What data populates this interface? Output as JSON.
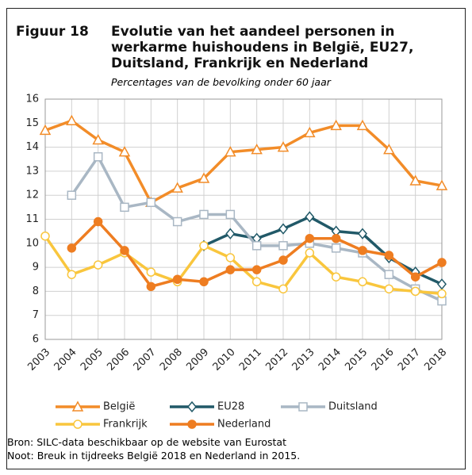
{
  "header": {
    "figure": "Figuur 18",
    "title": "Evolutie van het aandeel personen in werkarme huishoudens in België, EU27, Duitsland, Frankrijk en Nederland",
    "subtitle": "Percentages van de bevolking onder 60 jaar"
  },
  "chart_data": {
    "type": "line",
    "categories": [
      "2003",
      "2004",
      "2005",
      "2006",
      "2007",
      "2008",
      "2009",
      "2010",
      "2011",
      "2012",
      "2013",
      "2014",
      "2015",
      "2016",
      "2017",
      "2018"
    ],
    "ylim": [
      6,
      16
    ],
    "yticks": [
      6,
      7,
      8,
      9,
      10,
      11,
      12,
      13,
      14,
      15,
      16
    ],
    "grid": true,
    "legend": "bottom",
    "series": [
      {
        "name": "België",
        "color": "#f28c28",
        "marker": "triangle",
        "values": [
          14.7,
          15.1,
          14.3,
          13.8,
          11.7,
          12.3,
          12.7,
          13.8,
          13.9,
          14.0,
          14.6,
          14.9,
          14.9,
          13.9,
          12.6,
          12.4
        ]
      },
      {
        "name": "EU28",
        "color": "#215968",
        "marker": "diamond",
        "values": [
          null,
          null,
          null,
          null,
          null,
          null,
          9.9,
          10.4,
          10.2,
          10.6,
          11.1,
          10.5,
          10.4,
          9.4,
          8.8,
          8.3
        ]
      },
      {
        "name": "Duitsland",
        "color": "#a9b7c4",
        "marker": "square",
        "values": [
          null,
          12.0,
          13.6,
          11.5,
          11.7,
          10.9,
          11.2,
          11.2,
          9.9,
          9.9,
          10.0,
          9.8,
          9.6,
          8.7,
          8.1,
          7.6
        ]
      },
      {
        "name": "Frankrijk",
        "color": "#f9c63d",
        "marker": "circle",
        "values": [
          10.3,
          8.7,
          9.1,
          9.6,
          8.8,
          8.4,
          9.9,
          9.4,
          8.4,
          8.1,
          9.6,
          8.6,
          8.4,
          8.1,
          8.0,
          7.9
        ]
      },
      {
        "name": "Nederland",
        "color": "#ee7d21",
        "marker": "dot",
        "values": [
          null,
          9.8,
          10.9,
          9.7,
          8.2,
          8.5,
          8.4,
          8.9,
          8.9,
          9.3,
          10.2,
          10.2,
          9.7,
          9.5,
          8.6,
          9.2
        ]
      }
    ]
  },
  "footer": {
    "source": "Bron: SILC-data beschikbaar op de website van Eurostat",
    "note": "Noot: Breuk in tijdreeks België 2018 en Nederland in 2015."
  }
}
